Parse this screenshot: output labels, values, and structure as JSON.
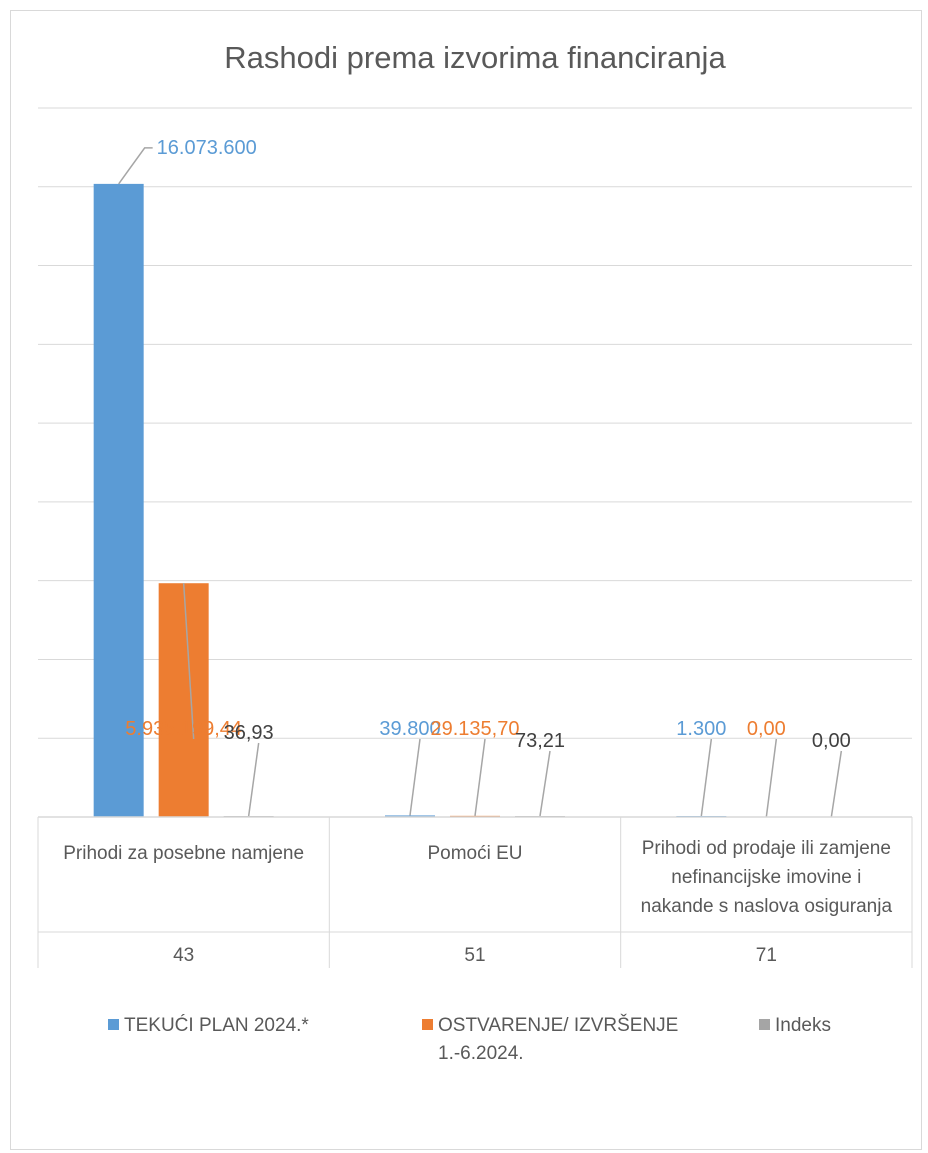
{
  "chart_data": {
    "type": "bar",
    "title": "Rashodi prema izvorima financiranja",
    "categories": [
      {
        "label": "Prihodi za posebne namjene",
        "code": "43"
      },
      {
        "label": "Pomoći EU",
        "code": "51"
      },
      {
        "label": "Prihodi od prodaje ili zamjene nefinancijske imovine i nakande s naslova osiguranja",
        "label_lines": [
          "Prihodi od prodaje ili zamjene",
          "nefinancijske imovine i",
          "nakande s naslova osiguranja"
        ],
        "code": "71"
      }
    ],
    "series": [
      {
        "name": "TEKUĆI PLAN 2024.*",
        "color": "#5B9BD5",
        "values": [
          16073600,
          39800,
          1300
        ],
        "labels": [
          "16.073.600",
          "39.800",
          "1.300"
        ]
      },
      {
        "name": "OSTVARENJE/ IZVRŠENJE 1.-6.2024.",
        "name_lines": [
          "OSTVARENJE/ IZVRŠENJE",
          "1.-6.2024."
        ],
        "color": "#ED7D31",
        "values": [
          5935199.44,
          29135.7,
          0
        ],
        "labels": [
          "5.935.199,44",
          "29.135,70",
          "0,00"
        ]
      },
      {
        "name": "Indeks",
        "color": "#A5A5A5",
        "values": [
          36.93,
          73.21,
          0
        ],
        "labels": [
          "36,93",
          "73,21",
          "0,00"
        ]
      }
    ],
    "ylim": [
      0,
      18000000
    ],
    "y_gridline_step": 2000000,
    "grid": true,
    "legend_position": "bottom",
    "label_text_color": "#404040"
  }
}
